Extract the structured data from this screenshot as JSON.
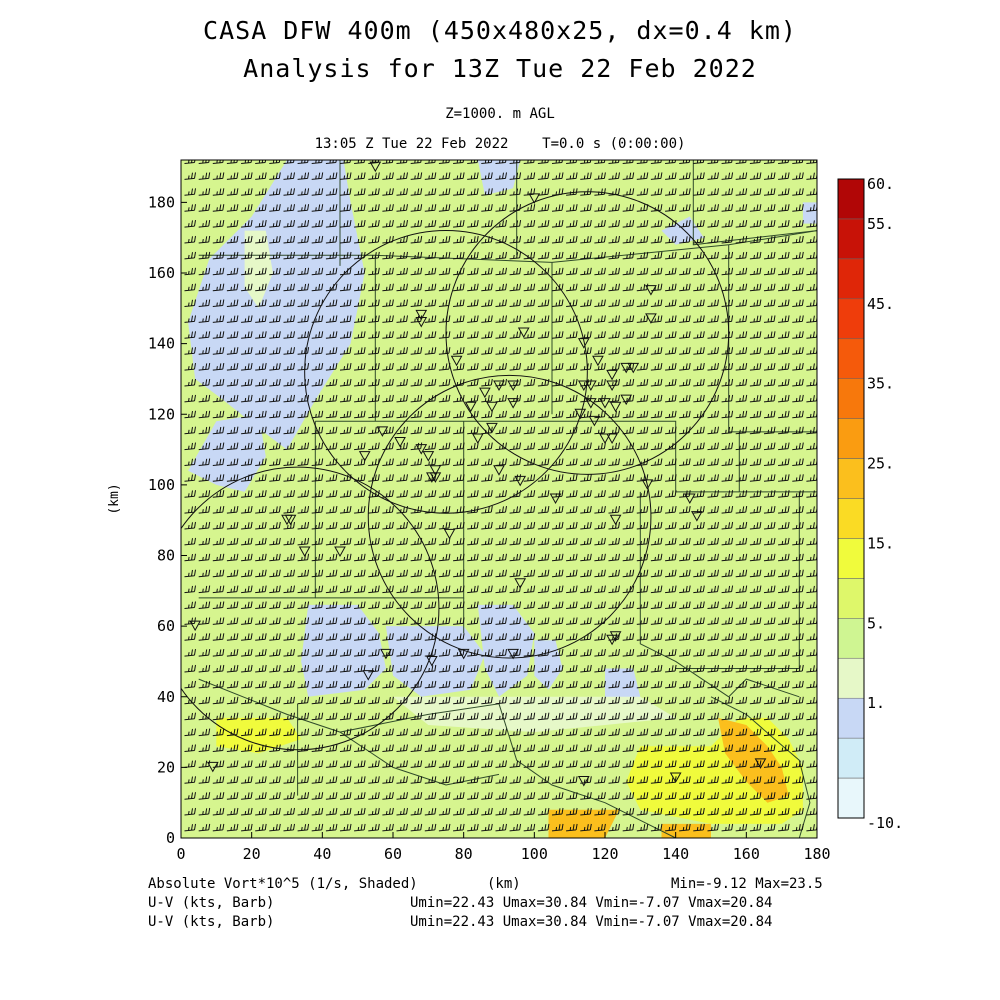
{
  "title": {
    "line1": "CASA DFW 400m (450x480x25, dx=0.4 km)",
    "line2": "Analysis for 13Z Tue 22 Feb 2022"
  },
  "subtitle": {
    "level": "Z=1000. m AGL",
    "time": "13:05 Z Tue 22 Feb 2022    T=0.0 s (0:00:00)"
  },
  "footer": {
    "field1": "Absolute Vort*10^5 (1/s, Shaded)",
    "xunit": "(km)",
    "minmax": "Min=-9.12 Max=23.5",
    "field2": "U-V (kts, Barb)",
    "field3": "U-V (kts, Barb)",
    "range2": "Umin=22.43 Umax=30.84 Vmin=-7.07 Vmax=20.84",
    "range3": "Umin=22.43 Umax=30.84 Vmin=-7.07 Vmax=20.84"
  },
  "colors": {
    "base_field": "#d6f58f",
    "frame": "#000000"
  },
  "chart_data": {
    "type": "heatmap",
    "title": "CASA DFW 400m (450x480x25, dx=0.4 km)",
    "xlabel": "(km)",
    "ylabel": "(km)",
    "xlim": [
      0,
      180
    ],
    "ylim": [
      0,
      192
    ],
    "x_ticks": [
      0,
      20,
      40,
      60,
      80,
      100,
      120,
      140,
      160,
      180
    ],
    "y_ticks": [
      0,
      20,
      40,
      60,
      80,
      100,
      120,
      140,
      160,
      180
    ],
    "colorbar": {
      "tick_labels": [
        "60.",
        "55.",
        "45.",
        "35.",
        "25.",
        "15.",
        "5.",
        "1.",
        "-10."
      ],
      "bands": [
        {
          "color": "#e8f7fb"
        },
        {
          "color": "#d0ecf7"
        },
        {
          "color": "#c8d8f5"
        },
        {
          "color": "#e6f8c8"
        },
        {
          "color": "#cff592"
        },
        {
          "color": "#def76a"
        },
        {
          "color": "#f0fb3c"
        },
        {
          "color": "#fadb24"
        },
        {
          "color": "#fbbf1d"
        },
        {
          "color": "#fa9c11"
        },
        {
          "color": "#f7780c"
        },
        {
          "color": "#f55a0b"
        },
        {
          "color": "#ef3d0b"
        },
        {
          "color": "#df2608"
        },
        {
          "color": "#c81207"
        },
        {
          "color": "#b10606"
        }
      ]
    },
    "field_min": -9.12,
    "field_max": 23.5,
    "shaded_regions": [
      {
        "level": "1.",
        "points": [
          [
            30,
            192
          ],
          [
            46,
            192
          ],
          [
            48,
            180
          ],
          [
            52,
            160
          ],
          [
            48,
            140
          ],
          [
            38,
            124
          ],
          [
            30,
            110
          ],
          [
            22,
            116
          ],
          [
            12,
            124
          ],
          [
            4,
            130
          ],
          [
            2,
            146
          ],
          [
            8,
            164
          ],
          [
            20,
            176
          ]
        ]
      },
      {
        "level": "1.",
        "points": [
          [
            84,
            192
          ],
          [
            96,
            192
          ],
          [
            94,
            184
          ],
          [
            86,
            182
          ]
        ]
      },
      {
        "level": "1.",
        "points": [
          [
            136,
            172
          ],
          [
            140,
            168
          ],
          [
            148,
            170
          ],
          [
            144,
            176
          ]
        ]
      },
      {
        "level": "1.",
        "points": [
          [
            176,
            180
          ],
          [
            180,
            180
          ],
          [
            180,
            174
          ],
          [
            176,
            174
          ]
        ]
      },
      {
        "level": "1.",
        "points": [
          [
            10,
            118
          ],
          [
            22,
            120
          ],
          [
            24,
            108
          ],
          [
            18,
            98
          ],
          [
            10,
            100
          ],
          [
            2,
            104
          ]
        ]
      },
      {
        "level": "1.",
        "points": [
          [
            36,
            66
          ],
          [
            50,
            66
          ],
          [
            56,
            58
          ],
          [
            58,
            48
          ],
          [
            52,
            42
          ],
          [
            36,
            40
          ],
          [
            34,
            50
          ]
        ]
      },
      {
        "level": "1.",
        "points": [
          [
            58,
            60
          ],
          [
            80,
            60
          ],
          [
            86,
            52
          ],
          [
            82,
            42
          ],
          [
            68,
            40
          ],
          [
            60,
            46
          ]
        ]
      },
      {
        "level": "1.",
        "points": [
          [
            84,
            66
          ],
          [
            94,
            66
          ],
          [
            100,
            58
          ],
          [
            98,
            46
          ],
          [
            90,
            40
          ],
          [
            86,
            48
          ]
        ]
      },
      {
        "level": "1.",
        "points": [
          [
            100,
            56
          ],
          [
            106,
            56
          ],
          [
            108,
            48
          ],
          [
            104,
            42
          ],
          [
            100,
            46
          ]
        ]
      },
      {
        "level": "1.",
        "points": [
          [
            120,
            48
          ],
          [
            128,
            48
          ],
          [
            130,
            40
          ],
          [
            124,
            36
          ],
          [
            120,
            40
          ]
        ]
      },
      {
        "level": "5.",
        "points": [
          [
            18,
            172
          ],
          [
            24,
            172
          ],
          [
            26,
            160
          ],
          [
            22,
            150
          ],
          [
            18,
            156
          ]
        ]
      },
      {
        "level": "5.",
        "points": [
          [
            60,
            40
          ],
          [
            130,
            40
          ],
          [
            140,
            34
          ],
          [
            100,
            30
          ],
          [
            70,
            32
          ]
        ]
      },
      {
        "level": "15.",
        "points": [
          [
            130,
            26
          ],
          [
            150,
            26
          ],
          [
            158,
            34
          ],
          [
            166,
            34
          ],
          [
            172,
            28
          ],
          [
            176,
            20
          ],
          [
            176,
            8
          ],
          [
            170,
            4
          ],
          [
            150,
            4
          ],
          [
            130,
            8
          ],
          [
            126,
            16
          ]
        ]
      },
      {
        "level": "15.",
        "points": [
          [
            10,
            34
          ],
          [
            30,
            34
          ],
          [
            34,
            28
          ],
          [
            22,
            24
          ],
          [
            10,
            26
          ]
        ]
      },
      {
        "level": "25.",
        "points": [
          [
            152,
            34
          ],
          [
            160,
            32
          ],
          [
            166,
            26
          ],
          [
            170,
            20
          ],
          [
            172,
            12
          ],
          [
            166,
            10
          ],
          [
            160,
            16
          ],
          [
            154,
            24
          ]
        ]
      },
      {
        "level": "25.",
        "points": [
          [
            104,
            8
          ],
          [
            124,
            8
          ],
          [
            120,
            0
          ],
          [
            104,
            0
          ]
        ]
      },
      {
        "level": "25.",
        "points": [
          [
            136,
            4
          ],
          [
            150,
            4
          ],
          [
            150,
            0
          ],
          [
            136,
            0
          ]
        ]
      }
    ],
    "range_circles": [
      {
        "center": [
          75,
          132
        ],
        "radius_km": 40
      },
      {
        "center": [
          115,
          143
        ],
        "radius_km": 40
      },
      {
        "center": [
          93,
          91
        ],
        "radius_km": 40
      },
      {
        "center": [
          33,
          65
        ],
        "radius_km": 40
      }
    ],
    "county_boundaries": [
      [
        [
          45,
          192
        ],
        [
          45,
          162
        ]
      ],
      [
        [
          95,
          192
        ],
        [
          95,
          165
        ]
      ],
      [
        [
          145,
          192
        ],
        [
          145,
          168
        ],
        [
          180,
          172
        ]
      ],
      [
        [
          5,
          165
        ],
        [
          55,
          165
        ],
        [
          55,
          118
        ]
      ],
      [
        [
          55,
          165
        ],
        [
          105,
          163
        ],
        [
          155,
          168
        ]
      ],
      [
        [
          105,
          163
        ],
        [
          105,
          120
        ]
      ],
      [
        [
          155,
          168
        ],
        [
          155,
          115
        ],
        [
          180,
          115
        ]
      ],
      [
        [
          155,
          168
        ],
        [
          180,
          172
        ]
      ],
      [
        [
          38,
          118
        ],
        [
          140,
          118
        ],
        [
          140,
          98
        ],
        [
          158,
          98
        ]
      ],
      [
        [
          158,
          115
        ],
        [
          158,
          98
        ],
        [
          180,
          98
        ]
      ],
      [
        [
          38,
          118
        ],
        [
          38,
          68
        ],
        [
          5,
          68
        ]
      ],
      [
        [
          38,
          68
        ],
        [
          80,
          68
        ],
        [
          80,
          118
        ]
      ],
      [
        [
          80,
          68
        ],
        [
          80,
          58
        ]
      ],
      [
        [
          130,
          98
        ],
        [
          130,
          55
        ],
        [
          140,
          50
        ],
        [
          155,
          40
        ],
        [
          160,
          45
        ],
        [
          175,
          40
        ]
      ],
      [
        [
          175,
          98
        ],
        [
          175,
          48
        ],
        [
          140,
          48
        ]
      ],
      [
        [
          5,
          45
        ],
        [
          30,
          35
        ],
        [
          45,
          30
        ],
        [
          60,
          20
        ],
        [
          75,
          15
        ],
        [
          90,
          18
        ]
      ],
      [
        [
          45,
          30
        ],
        [
          70,
          35
        ],
        [
          90,
          38
        ],
        [
          95,
          22
        ],
        [
          105,
          15
        ],
        [
          120,
          10
        ]
      ],
      [
        [
          33,
          38
        ],
        [
          33,
          12
        ]
      ],
      [
        [
          120,
          10
        ],
        [
          130,
          5
        ],
        [
          140,
          0
        ]
      ],
      [
        [
          150,
          40
        ],
        [
          160,
          35
        ],
        [
          168,
          28
        ],
        [
          175,
          22
        ],
        [
          178,
          10
        ],
        [
          175,
          0
        ]
      ]
    ],
    "radar_sites": [
      [
        55,
        190
      ],
      [
        100,
        181
      ],
      [
        68,
        148
      ],
      [
        68,
        146
      ],
      [
        97,
        143
      ],
      [
        133,
        155
      ],
      [
        133,
        147
      ],
      [
        78,
        135
      ],
      [
        114,
        140
      ],
      [
        118,
        135
      ],
      [
        122,
        131
      ],
      [
        126,
        133
      ],
      [
        128,
        133
      ],
      [
        114,
        128
      ],
      [
        116,
        128
      ],
      [
        122,
        128
      ],
      [
        116,
        123
      ],
      [
        120,
        123
      ],
      [
        123,
        122
      ],
      [
        126,
        124
      ],
      [
        113,
        120
      ],
      [
        117,
        118
      ],
      [
        122,
        113
      ],
      [
        120,
        113
      ],
      [
        86,
        126
      ],
      [
        88,
        122
      ],
      [
        82,
        122
      ],
      [
        94,
        128
      ],
      [
        90,
        128
      ],
      [
        94,
        123
      ],
      [
        84,
        113
      ],
      [
        88,
        116
      ],
      [
        57,
        115
      ],
      [
        62,
        112
      ],
      [
        68,
        110
      ],
      [
        70,
        108
      ],
      [
        72,
        104
      ],
      [
        71,
        102
      ],
      [
        90,
        104
      ],
      [
        72,
        102
      ],
      [
        52,
        108
      ],
      [
        96,
        101
      ],
      [
        132,
        100
      ],
      [
        106,
        96
      ],
      [
        123,
        90
      ],
      [
        144,
        96
      ],
      [
        146,
        91
      ],
      [
        30,
        90
      ],
      [
        31,
        90
      ],
      [
        35,
        81
      ],
      [
        45,
        81
      ],
      [
        76,
        86
      ],
      [
        96,
        72
      ],
      [
        122,
        56
      ],
      [
        123,
        57
      ],
      [
        94,
        52
      ],
      [
        80,
        52
      ],
      [
        71,
        50
      ],
      [
        58,
        52
      ],
      [
        53,
        46
      ],
      [
        4,
        60
      ],
      [
        9,
        20
      ],
      [
        140,
        17
      ],
      [
        164,
        21
      ],
      [
        114,
        16
      ]
    ],
    "barb_grid": {
      "dx_km": 4,
      "dy_km": 4.5,
      "u_range": [
        22.43,
        30.84
      ],
      "v_range": [
        -7.07,
        20.84
      ]
    }
  }
}
